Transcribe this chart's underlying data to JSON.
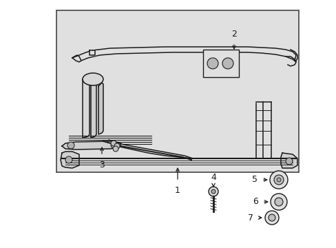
{
  "bg_color": "#ffffff",
  "box_bg": "#e8e8e8",
  "line_color": "#1a1a1a",
  "fig_w": 4.89,
  "fig_h": 3.6,
  "dpi": 100
}
